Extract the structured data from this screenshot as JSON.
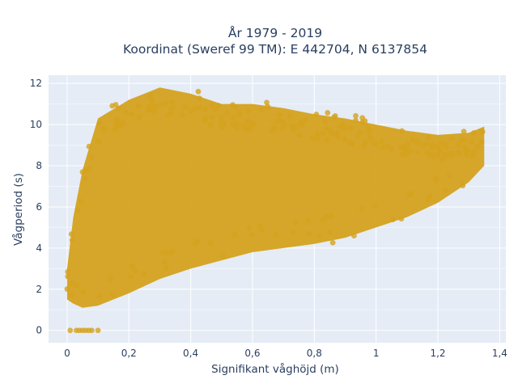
{
  "chart_data": {
    "type": "scatter",
    "title_line1": "År 1979 - 2019",
    "title_line2": "Koordinat (Sweref 99 TM): E 442704, N 6137854",
    "xlabel": "Signifikant våghöjd (m)",
    "ylabel": "Vågperiod (s)",
    "xlim": [
      -0.06,
      1.42
    ],
    "ylim": [
      -0.6,
      12.4
    ],
    "x_ticks": [
      0,
      0.2,
      0.4,
      0.6,
      0.8,
      1,
      1.2,
      1.4
    ],
    "x_tick_labels": [
      "0",
      "0,2",
      "0,4",
      "0,6",
      "0,8",
      "1",
      "1,2",
      "1,4"
    ],
    "y_ticks": [
      0,
      2,
      4,
      6,
      8,
      10,
      12
    ],
    "y_tick_labels": [
      "0",
      "2",
      "4",
      "6",
      "8",
      "10",
      "12"
    ],
    "grid": true,
    "marker_color": "#d4a21e",
    "background_color": "#e5ecf6",
    "envelope": [
      {
        "x": 0.0,
        "y_low": 1.5,
        "y_high": 3.0
      },
      {
        "x": 0.02,
        "y_low": 1.3,
        "y_high": 5.5
      },
      {
        "x": 0.05,
        "y_low": 1.1,
        "y_high": 7.8
      },
      {
        "x": 0.1,
        "y_low": 1.2,
        "y_high": 10.3
      },
      {
        "x": 0.2,
        "y_low": 1.8,
        "y_high": 11.2
      },
      {
        "x": 0.3,
        "y_low": 2.5,
        "y_high": 11.8
      },
      {
        "x": 0.4,
        "y_low": 3.0,
        "y_high": 11.5
      },
      {
        "x": 0.5,
        "y_low": 3.4,
        "y_high": 11.0
      },
      {
        "x": 0.6,
        "y_low": 3.8,
        "y_high": 11.0
      },
      {
        "x": 0.7,
        "y_low": 4.0,
        "y_high": 10.8
      },
      {
        "x": 0.8,
        "y_low": 4.2,
        "y_high": 10.5
      },
      {
        "x": 0.9,
        "y_low": 4.5,
        "y_high": 10.3
      },
      {
        "x": 1.0,
        "y_low": 5.0,
        "y_high": 10.0
      },
      {
        "x": 1.1,
        "y_low": 5.5,
        "y_high": 9.7
      },
      {
        "x": 1.2,
        "y_low": 6.2,
        "y_high": 9.5
      },
      {
        "x": 1.3,
        "y_low": 7.2,
        "y_high": 9.6
      },
      {
        "x": 1.35,
        "y_low": 8.0,
        "y_high": 9.9
      }
    ],
    "zero_points": [
      {
        "x": 0.01,
        "y": 0
      },
      {
        "x": 0.03,
        "y": 0
      },
      {
        "x": 0.04,
        "y": 0
      },
      {
        "x": 0.05,
        "y": 0
      },
      {
        "x": 0.06,
        "y": 0
      },
      {
        "x": 0.07,
        "y": 0
      },
      {
        "x": 0.08,
        "y": 0
      },
      {
        "x": 0.1,
        "y": 0
      }
    ]
  }
}
